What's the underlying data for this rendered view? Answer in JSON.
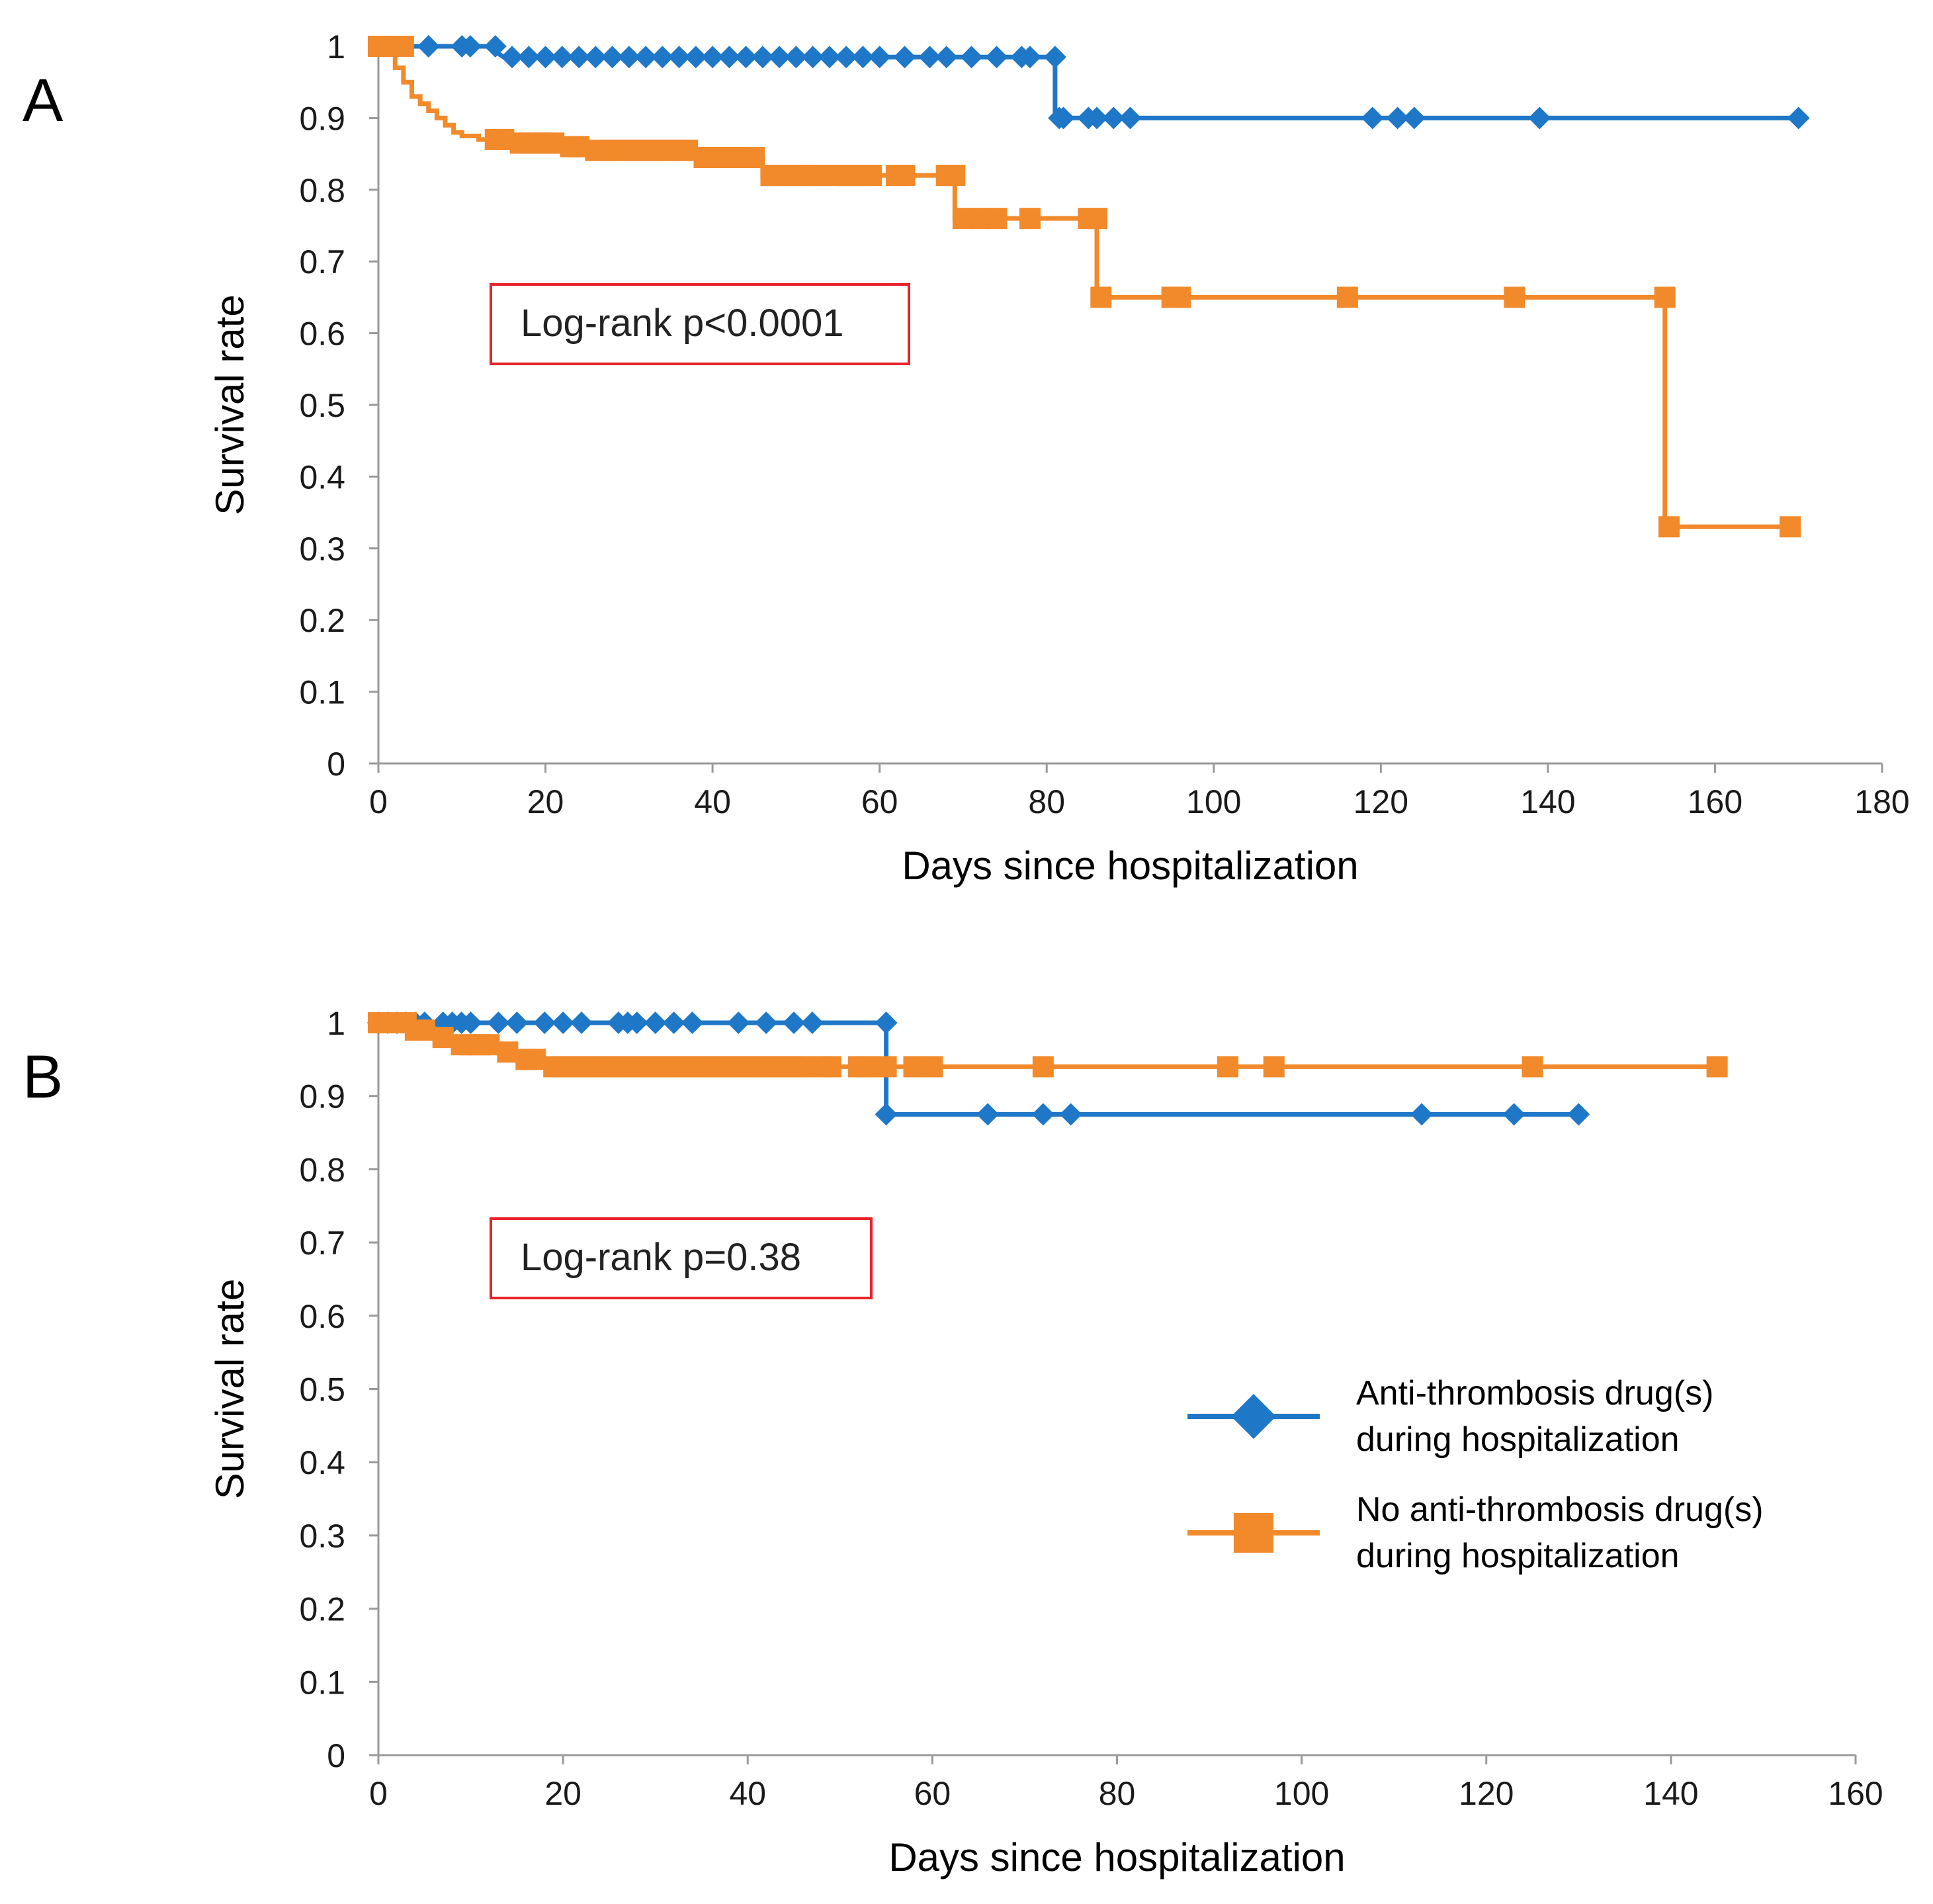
{
  "colors": {
    "blue": "#1f77c8",
    "orange": "#f28a2b",
    "annotation_border": "#e8232b",
    "axis": "#9a9a9a"
  },
  "chart_data": [
    {
      "panel": "A",
      "type": "line",
      "subtype": "kaplan-meier",
      "xlabel": "Days since hospitalization",
      "ylabel": "Survival rate",
      "xlim": [
        0,
        180
      ],
      "ylim": [
        0,
        1
      ],
      "xticks": [
        0,
        20,
        40,
        60,
        80,
        100,
        120,
        140,
        160,
        180
      ],
      "yticks": [
        0,
        0.1,
        0.2,
        0.3,
        0.4,
        0.5,
        0.6,
        0.7,
        0.8,
        0.9,
        1
      ],
      "grid": false,
      "annotation": "Log-rank p<0.0001",
      "series": [
        {
          "name": "Anti-thrombosis drug(s) during hospitalization",
          "color": "blue",
          "marker": "diamond",
          "step": [
            [
              0,
              1
            ],
            [
              13,
              1
            ],
            [
              15,
              0.985
            ],
            [
              81,
              0.985
            ],
            [
              81,
              0.9
            ],
            [
              170,
              0.9
            ]
          ],
          "censored": [
            [
              6,
              1
            ],
            [
              10,
              1
            ],
            [
              11,
              1
            ],
            [
              14,
              1
            ],
            [
              16,
              0.985
            ],
            [
              18,
              0.985
            ],
            [
              20,
              0.985
            ],
            [
              22,
              0.985
            ],
            [
              24,
              0.985
            ],
            [
              26,
              0.985
            ],
            [
              28,
              0.985
            ],
            [
              30,
              0.985
            ],
            [
              32,
              0.985
            ],
            [
              34,
              0.985
            ],
            [
              36,
              0.985
            ],
            [
              38,
              0.985
            ],
            [
              40,
              0.985
            ],
            [
              42,
              0.985
            ],
            [
              44,
              0.985
            ],
            [
              46,
              0.985
            ],
            [
              48,
              0.985
            ],
            [
              50,
              0.985
            ],
            [
              52,
              0.985
            ],
            [
              54,
              0.985
            ],
            [
              56,
              0.985
            ],
            [
              58,
              0.985
            ],
            [
              60,
              0.985
            ],
            [
              63,
              0.985
            ],
            [
              66,
              0.985
            ],
            [
              68,
              0.985
            ],
            [
              71,
              0.985
            ],
            [
              74,
              0.985
            ],
            [
              77,
              0.985
            ],
            [
              78,
              0.985
            ],
            [
              81,
              0.985
            ],
            [
              81.5,
              0.9
            ],
            [
              82,
              0.9
            ],
            [
              85,
              0.9
            ],
            [
              86,
              0.9
            ],
            [
              88,
              0.9
            ],
            [
              90,
              0.9
            ],
            [
              119,
              0.9
            ],
            [
              122,
              0.9
            ],
            [
              124,
              0.9
            ],
            [
              139,
              0.9
            ],
            [
              170,
              0.9
            ]
          ]
        },
        {
          "name": "No anti-thrombosis drug(s) during hospitalization",
          "color": "orange",
          "marker": "square",
          "step": [
            [
              0,
              1
            ],
            [
              2,
              1
            ],
            [
              2,
              0.97
            ],
            [
              3,
              0.97
            ],
            [
              3,
              0.95
            ],
            [
              4,
              0.95
            ],
            [
              4,
              0.93
            ],
            [
              5,
              0.93
            ],
            [
              5,
              0.92
            ],
            [
              6,
              0.92
            ],
            [
              6,
              0.91
            ],
            [
              7,
              0.91
            ],
            [
              7,
              0.9
            ],
            [
              8,
              0.9
            ],
            [
              8,
              0.89
            ],
            [
              9,
              0.89
            ],
            [
              9,
              0.88
            ],
            [
              10,
              0.88
            ],
            [
              10,
              0.875
            ],
            [
              12,
              0.875
            ],
            [
              12,
              0.87
            ],
            [
              16,
              0.87
            ],
            [
              16,
              0.865
            ],
            [
              22,
              0.865
            ],
            [
              22,
              0.86
            ],
            [
              25,
              0.86
            ],
            [
              25,
              0.855
            ],
            [
              38,
              0.855
            ],
            [
              38,
              0.845
            ],
            [
              46,
              0.845
            ],
            [
              46,
              0.82
            ],
            [
              69,
              0.82
            ],
            [
              69,
              0.76
            ],
            [
              86,
              0.76
            ],
            [
              86,
              0.65
            ],
            [
              154,
              0.65
            ],
            [
              154,
              0.33
            ],
            [
              169,
              0.33
            ]
          ],
          "censored": [
            [
              0,
              1
            ],
            [
              1,
              1
            ],
            [
              2,
              1
            ],
            [
              3,
              1
            ],
            [
              14,
              0.87
            ],
            [
              15,
              0.87
            ],
            [
              17,
              0.865
            ],
            [
              18,
              0.865
            ],
            [
              19,
              0.865
            ],
            [
              20,
              0.865
            ],
            [
              21,
              0.865
            ],
            [
              23,
              0.86
            ],
            [
              24,
              0.86
            ],
            [
              26,
              0.855
            ],
            [
              27,
              0.855
            ],
            [
              28,
              0.855
            ],
            [
              29,
              0.855
            ],
            [
              30,
              0.855
            ],
            [
              31,
              0.855
            ],
            [
              32,
              0.855
            ],
            [
              33,
              0.855
            ],
            [
              34,
              0.855
            ],
            [
              35,
              0.855
            ],
            [
              36,
              0.855
            ],
            [
              37,
              0.855
            ],
            [
              39,
              0.845
            ],
            [
              40,
              0.845
            ],
            [
              41,
              0.845
            ],
            [
              42,
              0.845
            ],
            [
              43,
              0.845
            ],
            [
              44,
              0.845
            ],
            [
              45,
              0.845
            ],
            [
              47,
              0.82
            ],
            [
              48,
              0.82
            ],
            [
              49,
              0.82
            ],
            [
              50,
              0.82
            ],
            [
              51,
              0.82
            ],
            [
              52,
              0.82
            ],
            [
              53,
              0.82
            ],
            [
              55,
              0.82
            ],
            [
              56,
              0.82
            ],
            [
              57,
              0.82
            ],
            [
              58,
              0.82
            ],
            [
              59,
              0.82
            ],
            [
              62,
              0.82
            ],
            [
              63,
              0.82
            ],
            [
              68,
              0.82
            ],
            [
              69,
              0.82
            ],
            [
              70,
              0.76
            ],
            [
              72,
              0.76
            ],
            [
              74,
              0.76
            ],
            [
              78,
              0.76
            ],
            [
              85,
              0.76
            ],
            [
              86,
              0.76
            ],
            [
              86.5,
              0.65
            ],
            [
              95,
              0.65
            ],
            [
              96,
              0.65
            ],
            [
              116,
              0.65
            ],
            [
              136,
              0.65
            ],
            [
              154,
              0.65
            ],
            [
              154.5,
              0.33
            ],
            [
              169,
              0.33
            ]
          ]
        }
      ]
    },
    {
      "panel": "B",
      "type": "line",
      "subtype": "kaplan-meier",
      "xlabel": "Days since hospitalization",
      "ylabel": "Survival rate",
      "xlim": [
        0,
        160
      ],
      "ylim": [
        0,
        1
      ],
      "xticks": [
        0,
        20,
        40,
        60,
        80,
        100,
        120,
        140,
        160
      ],
      "yticks": [
        0,
        0.1,
        0.2,
        0.3,
        0.4,
        0.5,
        0.6,
        0.7,
        0.8,
        0.9,
        1
      ],
      "grid": false,
      "annotation": "Log-rank p=0.38",
      "legend": {
        "position": "lower-right",
        "entries": [
          {
            "line1": "Anti-thrombosis drug(s)",
            "line2": "during hospitalization",
            "color": "blue",
            "marker": "diamond"
          },
          {
            "line1": "No anti-thrombosis drug(s)",
            "line2": "during hospitalization",
            "color": "orange",
            "marker": "square"
          }
        ]
      },
      "series": [
        {
          "name": "Anti-thrombosis drug(s) during hospitalization",
          "color": "blue",
          "marker": "diamond",
          "step": [
            [
              0,
              1
            ],
            [
              55,
              1
            ],
            [
              55,
              0.875
            ],
            [
              130,
              0.875
            ]
          ],
          "censored": [
            [
              0,
              1
            ],
            [
              1,
              1
            ],
            [
              2,
              1
            ],
            [
              3,
              1
            ],
            [
              4,
              1
            ],
            [
              5,
              1
            ],
            [
              7,
              1
            ],
            [
              8,
              1
            ],
            [
              9,
              1
            ],
            [
              10,
              1
            ],
            [
              13,
              1
            ],
            [
              15,
              1
            ],
            [
              18,
              1
            ],
            [
              20,
              1
            ],
            [
              22,
              1
            ],
            [
              26,
              1
            ],
            [
              27,
              1
            ],
            [
              28,
              1
            ],
            [
              30,
              1
            ],
            [
              32,
              1
            ],
            [
              34,
              1
            ],
            [
              39,
              1
            ],
            [
              42,
              1
            ],
            [
              45,
              1
            ],
            [
              47,
              1
            ],
            [
              55,
              1
            ],
            [
              55,
              0.875
            ],
            [
              66,
              0.875
            ],
            [
              72,
              0.875
            ],
            [
              75,
              0.875
            ],
            [
              113,
              0.875
            ],
            [
              123,
              0.875
            ],
            [
              130,
              0.875
            ]
          ]
        },
        {
          "name": "No anti-thrombosis drug(s) during hospitalization",
          "color": "orange",
          "marker": "square",
          "step": [
            [
              0,
              1
            ],
            [
              3,
              1
            ],
            [
              3,
              0.99
            ],
            [
              6,
              0.99
            ],
            [
              6,
              0.98
            ],
            [
              8,
              0.98
            ],
            [
              8,
              0.97
            ],
            [
              13,
              0.97
            ],
            [
              13,
              0.96
            ],
            [
              15,
              0.96
            ],
            [
              15,
              0.95
            ],
            [
              18,
              0.95
            ],
            [
              18,
              0.94
            ],
            [
              145,
              0.94
            ]
          ],
          "censored": [
            [
              0,
              1
            ],
            [
              1,
              1
            ],
            [
              2,
              1
            ],
            [
              3,
              1
            ],
            [
              4,
              0.99
            ],
            [
              5,
              0.99
            ],
            [
              7,
              0.98
            ],
            [
              9,
              0.97
            ],
            [
              10,
              0.97
            ],
            [
              11,
              0.97
            ],
            [
              12,
              0.97
            ],
            [
              14,
              0.96
            ],
            [
              16,
              0.95
            ],
            [
              17,
              0.95
            ],
            [
              19,
              0.94
            ],
            [
              20,
              0.94
            ],
            [
              21,
              0.94
            ],
            [
              22,
              0.94
            ],
            [
              23,
              0.94
            ],
            [
              24,
              0.94
            ],
            [
              25,
              0.94
            ],
            [
              26,
              0.94
            ],
            [
              27,
              0.94
            ],
            [
              28,
              0.94
            ],
            [
              29,
              0.94
            ],
            [
              30,
              0.94
            ],
            [
              31,
              0.94
            ],
            [
              32,
              0.94
            ],
            [
              33,
              0.94
            ],
            [
              34,
              0.94
            ],
            [
              35,
              0.94
            ],
            [
              36,
              0.94
            ],
            [
              37,
              0.94
            ],
            [
              38,
              0.94
            ],
            [
              39,
              0.94
            ],
            [
              40,
              0.94
            ],
            [
              41,
              0.94
            ],
            [
              42,
              0.94
            ],
            [
              43,
              0.94
            ],
            [
              44,
              0.94
            ],
            [
              45,
              0.94
            ],
            [
              46,
              0.94
            ],
            [
              48,
              0.94
            ],
            [
              49,
              0.94
            ],
            [
              52,
              0.94
            ],
            [
              53,
              0.94
            ],
            [
              55,
              0.94
            ],
            [
              58,
              0.94
            ],
            [
              60,
              0.94
            ],
            [
              72,
              0.94
            ],
            [
              92,
              0.94
            ],
            [
              97,
              0.94
            ],
            [
              125,
              0.94
            ],
            [
              145,
              0.94
            ]
          ]
        }
      ]
    }
  ]
}
